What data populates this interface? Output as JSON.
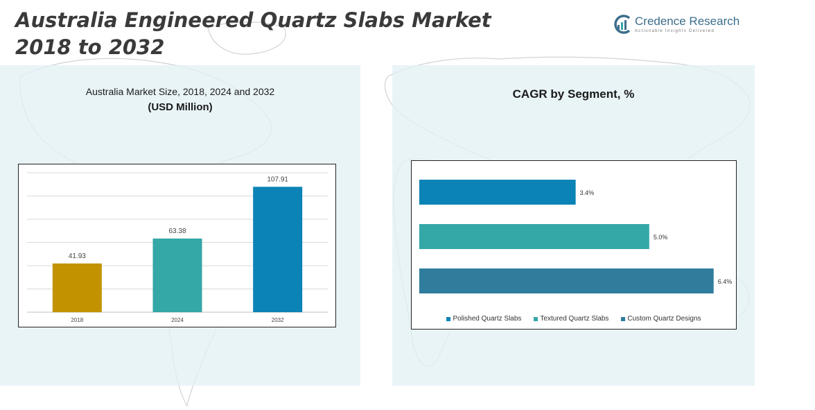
{
  "header": {
    "title_line1": "Australia Engineered Quartz Slabs Market",
    "title_line2": "2018 to 2032"
  },
  "logo": {
    "name": "Credence Research",
    "tagline": "Actionable Insights Delivered",
    "color": "#3c6e8c"
  },
  "left_panel": {
    "subtitle": "Australia Market Size, 2018, 2024 and 2032",
    "unit": "(USD Million)"
  },
  "right_panel": {
    "title": "CAGR by Segment, %"
  },
  "chart_data": [
    {
      "type": "bar",
      "categories": [
        "2018",
        "2024",
        "2032"
      ],
      "values": [
        41.93,
        63.38,
        107.91
      ],
      "value_labels": [
        "41.93",
        "63.38",
        "107.91"
      ],
      "colors": [
        "#c39200",
        "#34a7a7",
        "#0b83b6"
      ],
      "ylim": [
        0,
        120
      ],
      "grid": true,
      "legend": "none"
    },
    {
      "type": "bar",
      "orientation": "horizontal",
      "series": [
        {
          "name": "Polished Quartz Slabs",
          "value": 3.4,
          "label": "3.4%",
          "color": "#0b83b6"
        },
        {
          "name": "Textured Quartz Slabs",
          "value": 5.0,
          "label": "5.0%",
          "color": "#34a7a7"
        },
        {
          "name": "Custom Quartz Designs",
          "value": 6.4,
          "label": "6.4%",
          "color": "#2f7c9d"
        }
      ],
      "xlim": [
        0,
        6.6
      ],
      "grid": false,
      "legend": "bottom"
    }
  ]
}
